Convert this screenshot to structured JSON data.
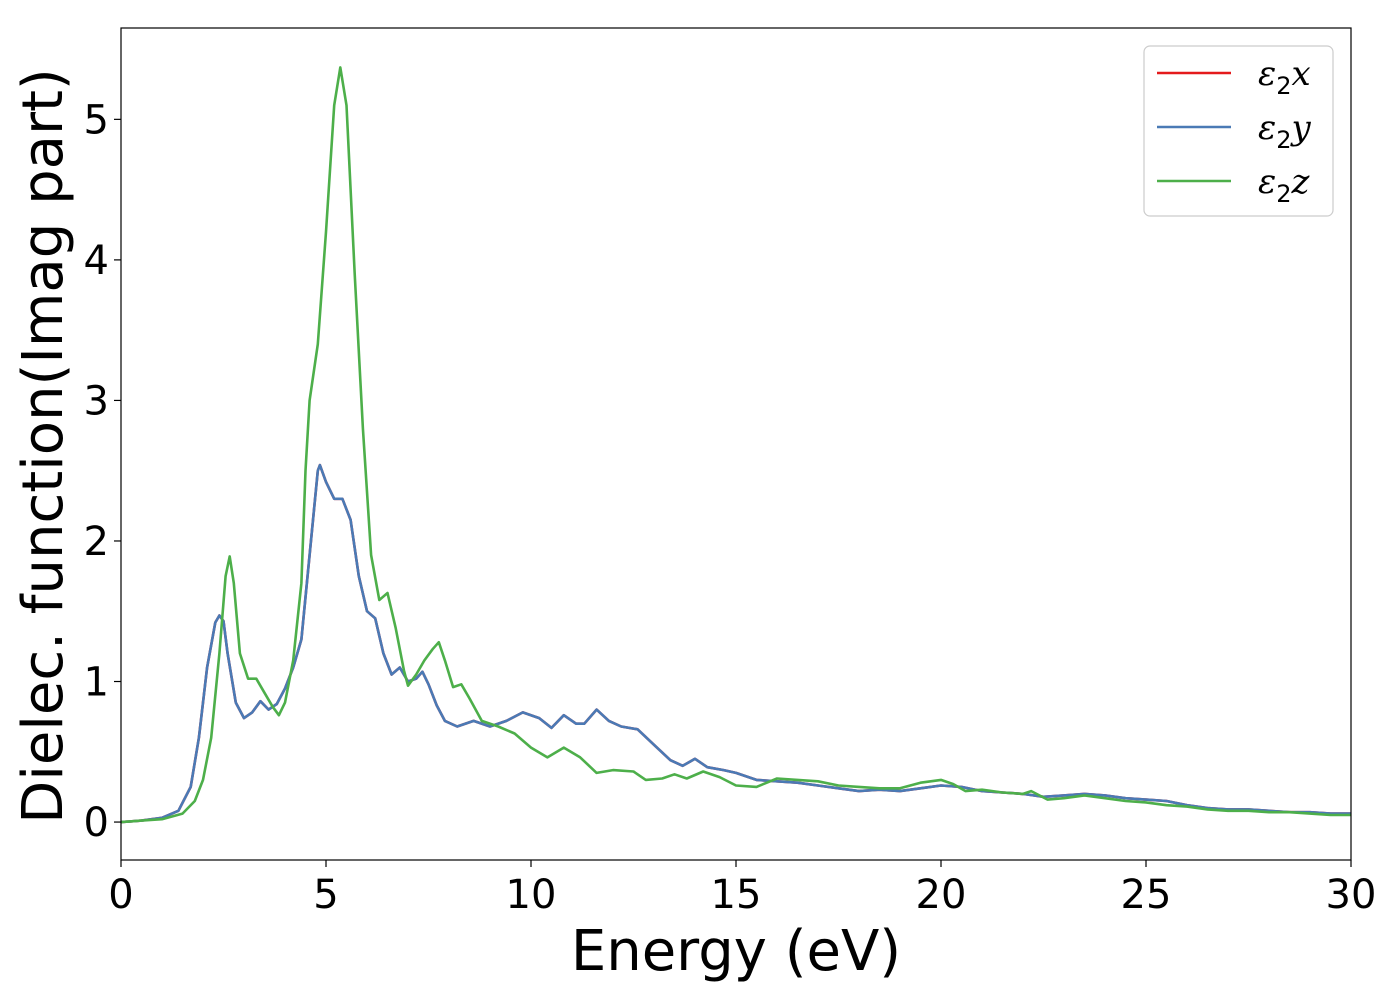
{
  "chart_data": {
    "type": "line",
    "title": "",
    "xlabel": "Energy (eV)",
    "ylabel": "Dielec. function(Imag part)",
    "xlim": [
      0,
      30
    ],
    "ylim": [
      -0.27,
      5.65
    ],
    "xticks": [
      0,
      5,
      10,
      15,
      20,
      25,
      30
    ],
    "yticks": [
      0,
      1,
      2,
      3,
      4,
      5
    ],
    "grid": false,
    "legend_position": "top-right",
    "series": [
      {
        "name": "ε₂x",
        "legend_base": "ε",
        "legend_sub": "2",
        "legend_suffix": "x",
        "color": "#e41a1c",
        "points": [
          [
            0,
            0
          ],
          [
            0.5,
            0.01
          ],
          [
            1,
            0.03
          ],
          [
            1.4,
            0.08
          ],
          [
            1.7,
            0.25
          ],
          [
            1.9,
            0.6
          ],
          [
            2.1,
            1.1
          ],
          [
            2.3,
            1.42
          ],
          [
            2.4,
            1.47
          ],
          [
            2.5,
            1.43
          ],
          [
            2.6,
            1.2
          ],
          [
            2.8,
            0.85
          ],
          [
            3.0,
            0.74
          ],
          [
            3.2,
            0.78
          ],
          [
            3.4,
            0.86
          ],
          [
            3.6,
            0.8
          ],
          [
            3.8,
            0.84
          ],
          [
            4.0,
            0.95
          ],
          [
            4.2,
            1.1
          ],
          [
            4.4,
            1.3
          ],
          [
            4.6,
            1.9
          ],
          [
            4.8,
            2.5
          ],
          [
            4.85,
            2.54
          ],
          [
            5.0,
            2.42
          ],
          [
            5.2,
            2.3
          ],
          [
            5.4,
            2.3
          ],
          [
            5.6,
            2.15
          ],
          [
            5.8,
            1.75
          ],
          [
            6.0,
            1.5
          ],
          [
            6.2,
            1.45
          ],
          [
            6.4,
            1.2
          ],
          [
            6.6,
            1.05
          ],
          [
            6.8,
            1.1
          ],
          [
            7.0,
            1.0
          ],
          [
            7.2,
            1.02
          ],
          [
            7.35,
            1.07
          ],
          [
            7.5,
            0.98
          ],
          [
            7.7,
            0.83
          ],
          [
            7.9,
            0.72
          ],
          [
            8.2,
            0.68
          ],
          [
            8.6,
            0.72
          ],
          [
            9.0,
            0.68
          ],
          [
            9.4,
            0.72
          ],
          [
            9.8,
            0.78
          ],
          [
            10.2,
            0.74
          ],
          [
            10.5,
            0.67
          ],
          [
            10.8,
            0.76
          ],
          [
            11.1,
            0.7
          ],
          [
            11.3,
            0.7
          ],
          [
            11.6,
            0.8
          ],
          [
            11.9,
            0.72
          ],
          [
            12.2,
            0.68
          ],
          [
            12.6,
            0.66
          ],
          [
            13.0,
            0.55
          ],
          [
            13.4,
            0.44
          ],
          [
            13.7,
            0.4
          ],
          [
            14.0,
            0.45
          ],
          [
            14.3,
            0.39
          ],
          [
            14.7,
            0.37
          ],
          [
            15.0,
            0.35
          ],
          [
            15.5,
            0.3
          ],
          [
            16.0,
            0.29
          ],
          [
            16.5,
            0.28
          ],
          [
            17.0,
            0.26
          ],
          [
            17.5,
            0.24
          ],
          [
            18.0,
            0.22
          ],
          [
            18.5,
            0.23
          ],
          [
            19.0,
            0.22
          ],
          [
            19.5,
            0.24
          ],
          [
            20.0,
            0.26
          ],
          [
            20.5,
            0.25
          ],
          [
            21.0,
            0.22
          ],
          [
            21.5,
            0.21
          ],
          [
            22.0,
            0.2
          ],
          [
            22.5,
            0.18
          ],
          [
            23.0,
            0.19
          ],
          [
            23.5,
            0.2
          ],
          [
            24.0,
            0.19
          ],
          [
            24.5,
            0.17
          ],
          [
            25.0,
            0.16
          ],
          [
            25.5,
            0.15
          ],
          [
            26.0,
            0.12
          ],
          [
            26.5,
            0.1
          ],
          [
            27.0,
            0.09
          ],
          [
            27.5,
            0.09
          ],
          [
            28.0,
            0.08
          ],
          [
            28.5,
            0.07
          ],
          [
            29.0,
            0.07
          ],
          [
            29.5,
            0.06
          ],
          [
            30.0,
            0.06
          ]
        ]
      },
      {
        "name": "ε₂y",
        "legend_base": "ε",
        "legend_sub": "2",
        "legend_suffix": "y",
        "color": "#4a7ab5",
        "points": [
          [
            0,
            0
          ],
          [
            0.5,
            0.01
          ],
          [
            1,
            0.03
          ],
          [
            1.4,
            0.08
          ],
          [
            1.7,
            0.25
          ],
          [
            1.9,
            0.6
          ],
          [
            2.1,
            1.1
          ],
          [
            2.3,
            1.42
          ],
          [
            2.4,
            1.47
          ],
          [
            2.5,
            1.43
          ],
          [
            2.6,
            1.2
          ],
          [
            2.8,
            0.85
          ],
          [
            3.0,
            0.74
          ],
          [
            3.2,
            0.78
          ],
          [
            3.4,
            0.86
          ],
          [
            3.6,
            0.8
          ],
          [
            3.8,
            0.84
          ],
          [
            4.0,
            0.95
          ],
          [
            4.2,
            1.1
          ],
          [
            4.4,
            1.3
          ],
          [
            4.6,
            1.9
          ],
          [
            4.8,
            2.5
          ],
          [
            4.85,
            2.54
          ],
          [
            5.0,
            2.42
          ],
          [
            5.2,
            2.3
          ],
          [
            5.4,
            2.3
          ],
          [
            5.6,
            2.15
          ],
          [
            5.8,
            1.75
          ],
          [
            6.0,
            1.5
          ],
          [
            6.2,
            1.45
          ],
          [
            6.4,
            1.2
          ],
          [
            6.6,
            1.05
          ],
          [
            6.8,
            1.1
          ],
          [
            7.0,
            1.0
          ],
          [
            7.2,
            1.02
          ],
          [
            7.35,
            1.07
          ],
          [
            7.5,
            0.98
          ],
          [
            7.7,
            0.83
          ],
          [
            7.9,
            0.72
          ],
          [
            8.2,
            0.68
          ],
          [
            8.6,
            0.72
          ],
          [
            9.0,
            0.68
          ],
          [
            9.4,
            0.72
          ],
          [
            9.8,
            0.78
          ],
          [
            10.2,
            0.74
          ],
          [
            10.5,
            0.67
          ],
          [
            10.8,
            0.76
          ],
          [
            11.1,
            0.7
          ],
          [
            11.3,
            0.7
          ],
          [
            11.6,
            0.8
          ],
          [
            11.9,
            0.72
          ],
          [
            12.2,
            0.68
          ],
          [
            12.6,
            0.66
          ],
          [
            13.0,
            0.55
          ],
          [
            13.4,
            0.44
          ],
          [
            13.7,
            0.4
          ],
          [
            14.0,
            0.45
          ],
          [
            14.3,
            0.39
          ],
          [
            14.7,
            0.37
          ],
          [
            15.0,
            0.35
          ],
          [
            15.5,
            0.3
          ],
          [
            16.0,
            0.29
          ],
          [
            16.5,
            0.28
          ],
          [
            17.0,
            0.26
          ],
          [
            17.5,
            0.24
          ],
          [
            18.0,
            0.22
          ],
          [
            18.5,
            0.23
          ],
          [
            19.0,
            0.22
          ],
          [
            19.5,
            0.24
          ],
          [
            20.0,
            0.26
          ],
          [
            20.5,
            0.25
          ],
          [
            21.0,
            0.22
          ],
          [
            21.5,
            0.21
          ],
          [
            22.0,
            0.2
          ],
          [
            22.5,
            0.18
          ],
          [
            23.0,
            0.19
          ],
          [
            23.5,
            0.2
          ],
          [
            24.0,
            0.19
          ],
          [
            24.5,
            0.17
          ],
          [
            25.0,
            0.16
          ],
          [
            25.5,
            0.15
          ],
          [
            26.0,
            0.12
          ],
          [
            26.5,
            0.1
          ],
          [
            27.0,
            0.09
          ],
          [
            27.5,
            0.09
          ],
          [
            28.0,
            0.08
          ],
          [
            28.5,
            0.07
          ],
          [
            29.0,
            0.07
          ],
          [
            29.5,
            0.06
          ],
          [
            30.0,
            0.06
          ]
        ]
      },
      {
        "name": "ε₂z",
        "legend_base": "ε",
        "legend_sub": "2",
        "legend_suffix": "z",
        "color": "#4daf4a",
        "points": [
          [
            0,
            0
          ],
          [
            0.5,
            0.01
          ],
          [
            1,
            0.02
          ],
          [
            1.5,
            0.06
          ],
          [
            1.8,
            0.15
          ],
          [
            2.0,
            0.3
          ],
          [
            2.2,
            0.6
          ],
          [
            2.4,
            1.2
          ],
          [
            2.55,
            1.75
          ],
          [
            2.65,
            1.89
          ],
          [
            2.75,
            1.7
          ],
          [
            2.9,
            1.2
          ],
          [
            3.1,
            1.02
          ],
          [
            3.3,
            1.02
          ],
          [
            3.5,
            0.92
          ],
          [
            3.7,
            0.82
          ],
          [
            3.85,
            0.76
          ],
          [
            4.0,
            0.85
          ],
          [
            4.2,
            1.15
          ],
          [
            4.4,
            1.7
          ],
          [
            4.5,
            2.5
          ],
          [
            4.6,
            3.0
          ],
          [
            4.8,
            3.4
          ],
          [
            5.0,
            4.2
          ],
          [
            5.2,
            5.1
          ],
          [
            5.35,
            5.37
          ],
          [
            5.5,
            5.1
          ],
          [
            5.7,
            3.9
          ],
          [
            5.9,
            2.8
          ],
          [
            6.1,
            1.9
          ],
          [
            6.3,
            1.58
          ],
          [
            6.5,
            1.63
          ],
          [
            6.7,
            1.38
          ],
          [
            6.9,
            1.08
          ],
          [
            7.0,
            0.97
          ],
          [
            7.2,
            1.05
          ],
          [
            7.4,
            1.15
          ],
          [
            7.6,
            1.23
          ],
          [
            7.75,
            1.28
          ],
          [
            7.9,
            1.15
          ],
          [
            8.1,
            0.96
          ],
          [
            8.3,
            0.98
          ],
          [
            8.5,
            0.88
          ],
          [
            8.8,
            0.72
          ],
          [
            9.2,
            0.68
          ],
          [
            9.6,
            0.63
          ],
          [
            10.0,
            0.53
          ],
          [
            10.4,
            0.46
          ],
          [
            10.8,
            0.53
          ],
          [
            11.2,
            0.46
          ],
          [
            11.6,
            0.35
          ],
          [
            12.0,
            0.37
          ],
          [
            12.5,
            0.36
          ],
          [
            12.8,
            0.3
          ],
          [
            13.2,
            0.31
          ],
          [
            13.5,
            0.34
          ],
          [
            13.8,
            0.31
          ],
          [
            14.2,
            0.36
          ],
          [
            14.6,
            0.32
          ],
          [
            15.0,
            0.26
          ],
          [
            15.5,
            0.25
          ],
          [
            16.0,
            0.31
          ],
          [
            16.5,
            0.3
          ],
          [
            17.0,
            0.29
          ],
          [
            17.5,
            0.26
          ],
          [
            18.0,
            0.25
          ],
          [
            18.5,
            0.24
          ],
          [
            19.0,
            0.24
          ],
          [
            19.5,
            0.28
          ],
          [
            20.0,
            0.3
          ],
          [
            20.3,
            0.27
          ],
          [
            20.6,
            0.22
          ],
          [
            21.0,
            0.23
          ],
          [
            21.5,
            0.21
          ],
          [
            22.0,
            0.2
          ],
          [
            22.2,
            0.22
          ],
          [
            22.6,
            0.16
          ],
          [
            23.0,
            0.17
          ],
          [
            23.5,
            0.19
          ],
          [
            24.0,
            0.17
          ],
          [
            24.5,
            0.15
          ],
          [
            25.0,
            0.14
          ],
          [
            25.5,
            0.12
          ],
          [
            26.0,
            0.11
          ],
          [
            26.5,
            0.09
          ],
          [
            27.0,
            0.08
          ],
          [
            27.5,
            0.08
          ],
          [
            28.0,
            0.07
          ],
          [
            28.5,
            0.07
          ],
          [
            29.0,
            0.06
          ],
          [
            29.5,
            0.05
          ],
          [
            30.0,
            0.05
          ]
        ]
      }
    ]
  }
}
